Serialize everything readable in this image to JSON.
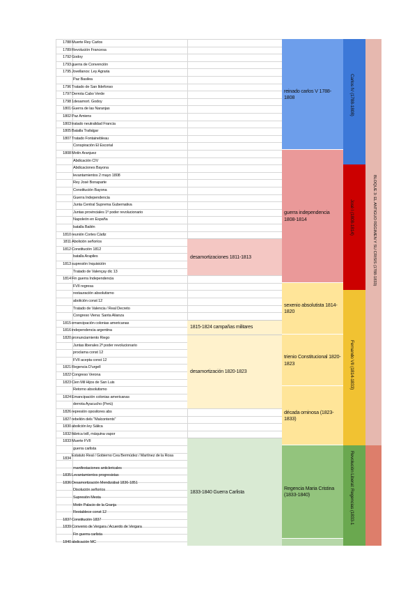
{
  "events": [
    {
      "year": "1788",
      "text": "Muerte Rey Carlos"
    },
    {
      "year": "1789",
      "text": "Revolución Francesa"
    },
    {
      "year": "1792",
      "text": "Godoy"
    },
    {
      "year": "1793",
      "text": "guerra de Convención"
    },
    {
      "year": "1795",
      "text": "Jovellanos: Ley Agraria"
    },
    {
      "year": "",
      "text": "Paz Basilea"
    },
    {
      "year": "1796",
      "text": "Tratado de San Ildefonso"
    },
    {
      "year": "1797",
      "text": "Derrota Cabo Verde"
    },
    {
      "year": "1798",
      "text": "1desamort. Godoy"
    },
    {
      "year": "1801",
      "text": "Guerra de las Naranjas"
    },
    {
      "year": "1802",
      "text": "Paz Amiens"
    },
    {
      "year": "1803",
      "text": "tratado neutralidad Francia"
    },
    {
      "year": "1805",
      "text": "Batalla Trafalgar"
    },
    {
      "year": "1807",
      "text": "Tratado Fontainebleau"
    },
    {
      "year": "",
      "text": "Conspiración El Escorial"
    },
    {
      "year": "1808",
      "text": "Motín Aranjuez"
    },
    {
      "year": "",
      "text": "Abdicación CIV"
    },
    {
      "year": "",
      "text": "Abdicaciones Bayona"
    },
    {
      "year": "",
      "text": "levantamientos 2 mayo 1808"
    },
    {
      "year": "",
      "text": "Rey José Bonaparte"
    },
    {
      "year": "",
      "text": "Constitución Bayona"
    },
    {
      "year": "",
      "text": "Guerra Independencia"
    },
    {
      "year": "",
      "text": "Junta Central Suprema Gubernativa"
    },
    {
      "year": "",
      "text": "Juntas provinciales 1º poder revolucionario"
    },
    {
      "year": "",
      "text": "Napoleón en España"
    },
    {
      "year": "",
      "text": "batalla Bailén"
    },
    {
      "year": "1810",
      "text": "reunión Cortes Cádiz"
    },
    {
      "year": "1811",
      "text": "Abolición señoríos"
    },
    {
      "year": "1812",
      "text": "Constitución 1812"
    },
    {
      "year": "",
      "text": "batalla Arapiles"
    },
    {
      "year": "1813",
      "text": "supresión Inquisición"
    },
    {
      "year": "",
      "text": "Tratado de Valençay dic 13"
    },
    {
      "year": "1814",
      "text": "Fin guerra Independencia"
    },
    {
      "year": "",
      "text": "FVII regresa"
    },
    {
      "year": "",
      "text": "restauración absolutismo"
    },
    {
      "year": "",
      "text": "abolición const 12"
    },
    {
      "year": "",
      "text": "Tratado de Valencia / Real Decreto"
    },
    {
      "year": "",
      "text": "Congreso Viena: Santa Alianza"
    },
    {
      "year": "1815",
      "text": "emancipación colonias americanas"
    },
    {
      "year": "1816",
      "text": "independencia argentina"
    },
    {
      "year": "1820",
      "text": "pronunciamiento Riego"
    },
    {
      "year": "",
      "text": "Juntas liberales 2º poder revolucionario"
    },
    {
      "year": "",
      "text": "proclama const 12"
    },
    {
      "year": "",
      "text": "FVII acepta const 12"
    },
    {
      "year": "1821",
      "text": "Regencia D'urgell"
    },
    {
      "year": "1822",
      "text": "Congreso Verona"
    },
    {
      "year": "1823",
      "text": "Cien Mil Hijos de San Luis"
    },
    {
      "year": "",
      "text": "Retorno absolutismo"
    },
    {
      "year": "1824",
      "text": "Emancipación colonias americanas"
    },
    {
      "year": "",
      "text": "derrota Ayacucho (Perú)"
    },
    {
      "year": "1826",
      "text": "represión opositores abs"
    },
    {
      "year": "1827",
      "text": "rebelión dels \"Malcontents\""
    },
    {
      "year": "1830",
      "text": "abolición ley Sálica"
    },
    {
      "year": "1832",
      "text": "fábrica txill, máquina vapor"
    },
    {
      "year": "1833",
      "text": "Muerte FVII"
    },
    {
      "year": "",
      "text": "guerra carlista"
    },
    {
      "year": "1834",
      "text": "Estatuto Real / Gobierno Cea Bermúdez / Martínez de la Rosa"
    },
    {
      "year": "",
      "text": "manifestaciones anticlericales"
    },
    {
      "year": "1835",
      "text": "Levantamientos progresistas"
    },
    {
      "year": "1836",
      "text": "Desamortización Mendizábal 1836-1851"
    },
    {
      "year": "",
      "text": "Disolución señoríos"
    },
    {
      "year": "",
      "text": "Supresión Mesta"
    },
    {
      "year": "",
      "text": "Motín Palacio de la Granja"
    },
    {
      "year": "",
      "text": "Restablece const 12"
    },
    {
      "year": "1837",
      "text": "Constitución 1837"
    },
    {
      "year": "1839",
      "text": "Convenio de Vergara / Acuerdo de Vergara"
    },
    {
      "year": "",
      "text": "Fin guerra carlista"
    },
    {
      "year": "1840",
      "text": "abdicación MC"
    }
  ],
  "desamortizaciones": [
    {
      "label": "desamortizaciones 1811-1813",
      "color": "#f4c7c3"
    },
    {
      "label": "1815-1824 campañas militares",
      "color": "#fff2cc"
    },
    {
      "label": "desamortización 1820-1823",
      "color": "#fff2cc"
    },
    {
      "label": "1833-1840 Guerra Carlista",
      "color": "#d9ead3"
    }
  ],
  "periods": [
    {
      "label": "reinado carlos V 1788-1808",
      "color": "#6d9eeb"
    },
    {
      "label": "guerra independencia 1808-1814",
      "color": "#ea9999"
    },
    {
      "label": "sexenio absolutista 1814-1820",
      "color": "#ffe599"
    },
    {
      "label": "trienio Constitucional 1820-1823",
      "color": "#ffe599"
    },
    {
      "label": "década ominosa (1823-1833)",
      "color": "#ffe599"
    },
    {
      "label": "Regencia Maria Cristina (1833-1840)",
      "color": "#93c47d"
    }
  ],
  "reigns": [
    {
      "label": "Carlos IV (1788-1808)",
      "color": "#3c78d8"
    },
    {
      "label": "José I (1808-1814)",
      "color": "#cc0000"
    },
    {
      "label": "Fernando VII (1814-1833)",
      "color": "#f1c232"
    },
    {
      "label": "Revolución Liberal: Regencias (1833-1",
      "color": "#6aa84f"
    }
  ],
  "blocks": [
    {
      "label": "BLOQUE 3: EL ANTIGUO RÉGIMEN Y SU CRISIS (1788-1833)",
      "color": "#e6b8af"
    },
    {
      "label": "",
      "color": "#dd7e6b"
    }
  ]
}
